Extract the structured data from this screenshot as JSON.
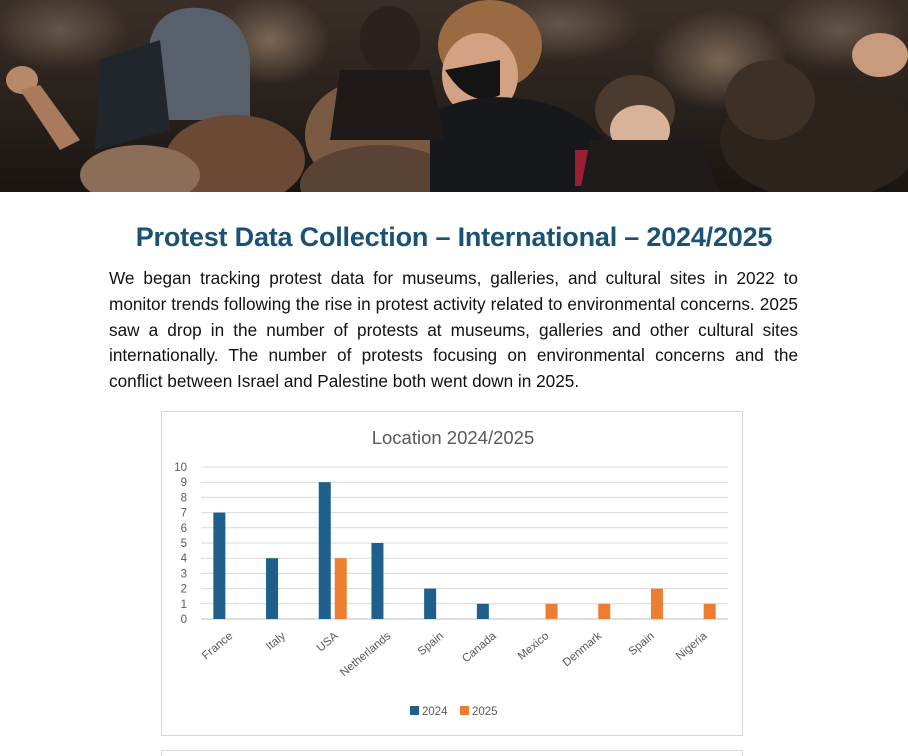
{
  "page": {
    "title": "Protest Data Collection – International – 2024/2025",
    "intro": "We began tracking protest data for museums, galleries, and cultural sites in 2022 to monitor trends following the rise in protest activity related to environmental concerns. 2025 saw a drop in the number of protests at museums, galleries and other cultural sites internationally. The number of protests focusing on environmental concerns and the conflict between Israel and Palestine both went down in 2025."
  },
  "chart_data": {
    "type": "bar",
    "title": "Location 2024/2025",
    "categories": [
      "France",
      "Italy",
      "USA",
      "Netherlands",
      "Spain",
      "Canada",
      "Mexico",
      "Denmark",
      "Spain",
      "Nigeria"
    ],
    "series": [
      {
        "name": "2024",
        "values": [
          7,
          4,
          9,
          5,
          2,
          1,
          0,
          0,
          0,
          0
        ],
        "color": "#1f5f8b"
      },
      {
        "name": "2025",
        "values": [
          0,
          0,
          4,
          0,
          0,
          0,
          1,
          1,
          2,
          1
        ],
        "color": "#ed7d31"
      }
    ],
    "yticks": [
      "0",
      "1",
      "2",
      "3",
      "4",
      "5",
      "6",
      "7",
      "8",
      "9",
      "10"
    ],
    "ylim": [
      0,
      10
    ],
    "grid": true,
    "legend_position": "bottom"
  }
}
